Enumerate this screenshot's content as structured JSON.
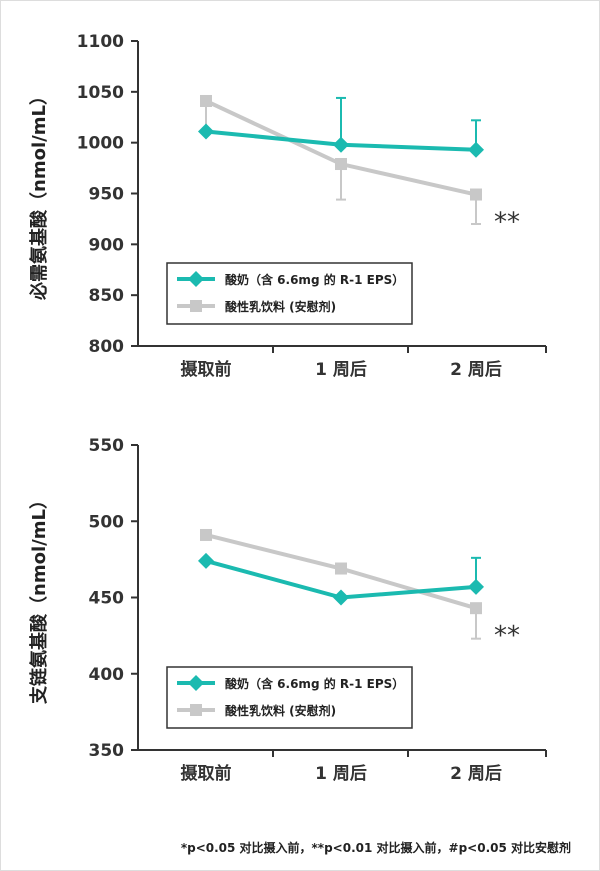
{
  "colors": {
    "teal": "#1bbab0",
    "gray": "#c8c8c8",
    "axis": "#333333"
  },
  "footnote": "*p<0.05 对比摄入前，**p<0.01 对比摄入前，#p<0.05 对比安慰剂",
  "chart_data": [
    {
      "type": "line",
      "ylabel": "必需氨基酸（nmol/mL）",
      "categories": [
        "摄取前",
        "1 周后",
        "2 周后"
      ],
      "ylim": [
        800,
        1100
      ],
      "yticks": [
        800,
        850,
        900,
        950,
        1000,
        1050,
        1100
      ],
      "legend": "bottom-left",
      "series": [
        {
          "name": "酸奶（含 6.6mg 的 R-1 EPS）",
          "color": "#1bbab0",
          "marker": "diamond",
          "values": [
            1011,
            998,
            993
          ],
          "err_upper": [
            null,
            1044,
            1022
          ],
          "err_lower": [
            null,
            null,
            null
          ]
        },
        {
          "name": "酸性乳饮料 (安慰剂)",
          "color": "#c8c8c8",
          "marker": "square",
          "values": [
            1041,
            979,
            949
          ],
          "err_upper": [
            null,
            null,
            null
          ],
          "err_lower": [
            1011,
            944,
            920
          ]
        }
      ],
      "annotations": [
        {
          "category": "2 周后",
          "text": "**"
        }
      ]
    },
    {
      "type": "line",
      "ylabel": "支链氨基酸（nmol/mL）",
      "categories": [
        "摄取前",
        "1 周后",
        "2 周后"
      ],
      "ylim": [
        350,
        550
      ],
      "yticks": [
        350,
        400,
        450,
        500,
        550
      ],
      "legend": "bottom-left",
      "series": [
        {
          "name": "酸奶（含 6.6mg 的 R-1 EPS）",
          "color": "#1bbab0",
          "marker": "diamond",
          "values": [
            474,
            450,
            457
          ],
          "err_upper": [
            null,
            null,
            476
          ],
          "err_lower": [
            null,
            null,
            null
          ]
        },
        {
          "name": "酸性乳饮料 (安慰剂)",
          "color": "#c8c8c8",
          "marker": "square",
          "values": [
            491,
            469,
            443
          ],
          "err_upper": [
            null,
            null,
            null
          ],
          "err_lower": [
            null,
            null,
            423
          ]
        }
      ],
      "annotations": [
        {
          "category": "2 周后",
          "text": "**"
        }
      ]
    }
  ]
}
